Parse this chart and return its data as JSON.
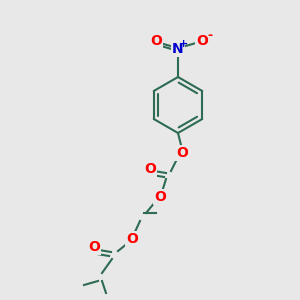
{
  "background_color": "#e8e8e8",
  "bond_color": "#2d6b52",
  "atom_colors": {
    "O": "#ff0000",
    "N": "#0000cc",
    "default": "#2d6b52"
  },
  "font_size": 9,
  "line_width": 1.5
}
